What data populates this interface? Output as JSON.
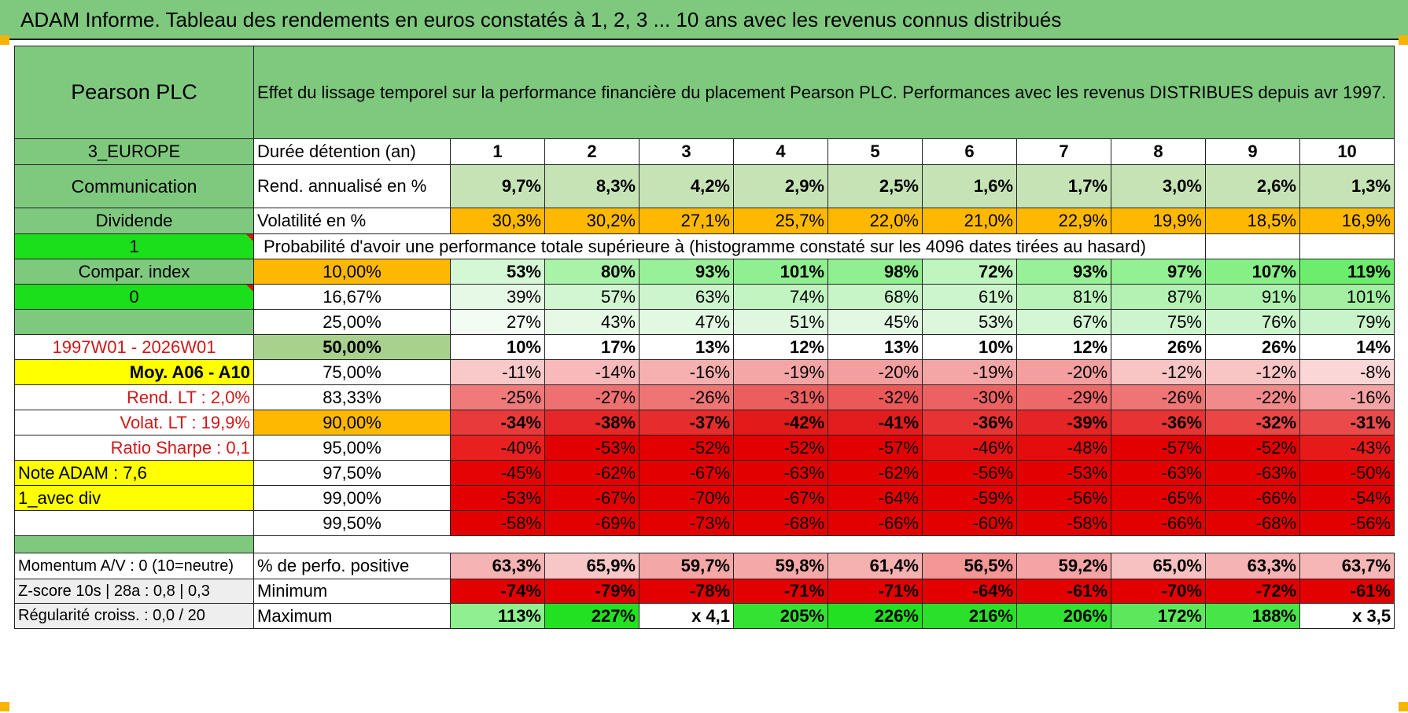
{
  "title": "ADAM Informe. Tableau des rendements en euros constatés à 1, 2, 3 ... 10 ans avec les revenus connus distribués",
  "header": {
    "fund": "Pearson PLC",
    "description": "Effet du lissage temporel sur la performance financière du placement Pearson PLC. Performances avec les revenus DISTRIBUES depuis avr 1997."
  },
  "side": {
    "region": "3_EUROPE",
    "sector": "Communication",
    "div_label": "Dividende",
    "div_value": "1",
    "compar_label": "Compar. index",
    "compar_value": "0",
    "period": "1997W01 - 2026W01",
    "moy": "Moy. A06 - A10",
    "rend_lt": "Rend. LT :   2,0%",
    "volat_lt": "Volat. LT :    19,9%",
    "sharpe": "Ratio Sharpe :    0,1",
    "note": "Note ADAM : 7,6",
    "avec_div": "1_avec div",
    "momentum": "Momentum A/V : 0 (10=neutre)",
    "zscore": "Z-score 10s | 28a : 0,8 | 0,3",
    "regularite": "Régularité croiss. : 0,0 / 20"
  },
  "rows": {
    "duree_label": "Durée détention (an)",
    "years": [
      "1",
      "2",
      "3",
      "4",
      "5",
      "6",
      "7",
      "8",
      "9",
      "10"
    ],
    "rend_label": "Rend. annualisé en %",
    "rend": [
      "9,7%",
      "8,3%",
      "4,2%",
      "2,9%",
      "2,5%",
      "1,6%",
      "1,7%",
      "3,0%",
      "2,6%",
      "1,3%"
    ],
    "vol_label": "Volatilité en %",
    "vol": [
      "30,3%",
      "30,2%",
      "27,1%",
      "25,7%",
      "22,0%",
      "21,0%",
      "22,9%",
      "19,9%",
      "18,5%",
      "16,9%"
    ],
    "prob_label": "Probabilité d'avoir une performance totale supérieure à (histogramme constaté sur les 4096 dates tirées au hasard)"
  },
  "prob_rows": [
    {
      "pct": "10,00%",
      "vals": [
        "53%",
        "80%",
        "93%",
        "101%",
        "98%",
        "72%",
        "93%",
        "97%",
        "107%",
        "119%"
      ],
      "colors": [
        "#d4f7d4",
        "#a9f3a9",
        "#98f198",
        "#8ff08f",
        "#90f090",
        "#bff6bf",
        "#98f198",
        "#93f093",
        "#86ef86",
        "#6ded6d"
      ]
    },
    {
      "pct": "16,67%",
      "vals": [
        "39%",
        "57%",
        "63%",
        "74%",
        "68%",
        "61%",
        "81%",
        "87%",
        "91%",
        "101%"
      ],
      "colors": [
        "#e6f9e6",
        "#d2f6d2",
        "#cdf5cd",
        "#c2f4c2",
        "#c8f5c8",
        "#cdf5cd",
        "#b9f3b9",
        "#b3f2b3",
        "#aff1af",
        "#a3f0a3"
      ]
    },
    {
      "pct": "25,00%",
      "vals": [
        "27%",
        "43%",
        "47%",
        "51%",
        "45%",
        "53%",
        "67%",
        "75%",
        "76%",
        "79%"
      ],
      "colors": [
        "#f2fcf2",
        "#e5f9e5",
        "#e1f8e1",
        "#def7de",
        "#e3f8e3",
        "#dcf7dc",
        "#d3f6d3",
        "#cdf5cd",
        "#ccf5cc",
        "#c9f4c9"
      ]
    },
    {
      "pct": "50,00%",
      "vals": [
        "10%",
        "17%",
        "13%",
        "12%",
        "13%",
        "10%",
        "12%",
        "26%",
        "26%",
        "14%"
      ],
      "colors": [
        "#ffffff",
        "#ffffff",
        "#ffffff",
        "#ffffff",
        "#ffffff",
        "#ffffff",
        "#ffffff",
        "#ffffff",
        "#ffffff",
        "#ffffff"
      ]
    },
    {
      "pct": "75,00%",
      "vals": [
        "-11%",
        "-14%",
        "-16%",
        "-19%",
        "-20%",
        "-19%",
        "-20%",
        "-12%",
        "-12%",
        "-8%"
      ],
      "colors": [
        "#f9c8c8",
        "#f7b9b9",
        "#f6b0b0",
        "#f4a6a6",
        "#f39f9f",
        "#f4a6a6",
        "#f39f9f",
        "#f9c4c4",
        "#f9c4c4",
        "#fbd6d6"
      ]
    },
    {
      "pct": "83,33%",
      "vals": [
        "-25%",
        "-27%",
        "-26%",
        "-31%",
        "-32%",
        "-30%",
        "-29%",
        "-26%",
        "-22%",
        "-16%"
      ],
      "colors": [
        "#f07a7a",
        "#ee7070",
        "#ef7575",
        "#ec5e5e",
        "#eb5858",
        "#ec6262",
        "#ed6868",
        "#ef7575",
        "#f18a8a",
        "#f4a4a4"
      ]
    },
    {
      "pct": "90,00%",
      "vals": [
        "-34%",
        "-38%",
        "-37%",
        "-42%",
        "-41%",
        "-36%",
        "-39%",
        "-36%",
        "-32%",
        "-31%"
      ],
      "colors": [
        "#e83a3a",
        "#e52727",
        "#e62c2c",
        "#e31a1a",
        "#e31d1d",
        "#e73333",
        "#e52525",
        "#e73333",
        "#ea4646",
        "#ea4a4a"
      ]
    },
    {
      "pct": "95,00%",
      "vals": [
        "-40%",
        "-53%",
        "-52%",
        "-52%",
        "-57%",
        "-46%",
        "-48%",
        "-57%",
        "-52%",
        "-43%"
      ],
      "colors": [
        "#e82020",
        "#e20000",
        "#e20000",
        "#e20000",
        "#e20000",
        "#e51414",
        "#e40c0c",
        "#e20000",
        "#e20000",
        "#e71a1a"
      ]
    },
    {
      "pct": "97,50%",
      "vals": [
        "-45%",
        "-62%",
        "-67%",
        "-63%",
        "-62%",
        "-56%",
        "-53%",
        "-63%",
        "-63%",
        "-50%"
      ],
      "colors": [
        "#e40404",
        "#e20000",
        "#e20000",
        "#e20000",
        "#e20000",
        "#e20000",
        "#e20000",
        "#e20000",
        "#e20000",
        "#e20000"
      ]
    },
    {
      "pct": "99,00%",
      "vals": [
        "-53%",
        "-67%",
        "-70%",
        "-67%",
        "-64%",
        "-59%",
        "-56%",
        "-65%",
        "-66%",
        "-54%"
      ],
      "colors": [
        "#e20000",
        "#e20000",
        "#e20000",
        "#e20000",
        "#e20000",
        "#e20000",
        "#e20000",
        "#e20000",
        "#e20000",
        "#e20000"
      ]
    },
    {
      "pct": "99,50%",
      "vals": [
        "-58%",
        "-69%",
        "-73%",
        "-68%",
        "-66%",
        "-60%",
        "-58%",
        "-66%",
        "-68%",
        "-56%"
      ],
      "colors": [
        "#e20000",
        "#e20000",
        "#e20000",
        "#e20000",
        "#e20000",
        "#e20000",
        "#e20000",
        "#e20000",
        "#e20000",
        "#e20000"
      ]
    }
  ],
  "bottom": {
    "pos_label": "% de perfo. positive",
    "pos": [
      "63,3%",
      "65,9%",
      "59,7%",
      "59,8%",
      "61,4%",
      "56,5%",
      "59,2%",
      "65,0%",
      "63,3%",
      "63,7%"
    ],
    "pos_colors": [
      "#f5b3b3",
      "#f7c6c6",
      "#f4a7a7",
      "#f4a8a8",
      "#f5b0b0",
      "#f29696",
      "#f4a4a4",
      "#f7c1c1",
      "#f5b3b3",
      "#f6b6b6"
    ],
    "min_label": "Minimum",
    "min": [
      "-74%",
      "-79%",
      "-78%",
      "-71%",
      "-71%",
      "-64%",
      "-61%",
      "-70%",
      "-72%",
      "-61%"
    ],
    "max_label": "Maximum",
    "max": [
      "113%",
      "227%",
      "x 4,1",
      "205%",
      "226%",
      "216%",
      "206%",
      "172%",
      "188%",
      "x 3,5"
    ],
    "max_colors": [
      "#8ff08f",
      "#22e022",
      "#ffffff",
      "#33e233",
      "#22e022",
      "#2ae02a",
      "#30e130",
      "#5ce85c",
      "#48e548",
      "#ffffff"
    ]
  },
  "colors": {
    "header_green": "#7fc97f",
    "rend_green": "#c6e3b5",
    "vol_orange": "#ffb800",
    "lime": "#1adf1a",
    "yellow": "#ffff00",
    "label_red": "#d01818",
    "median_pct_bg": "#a9d18e"
  }
}
